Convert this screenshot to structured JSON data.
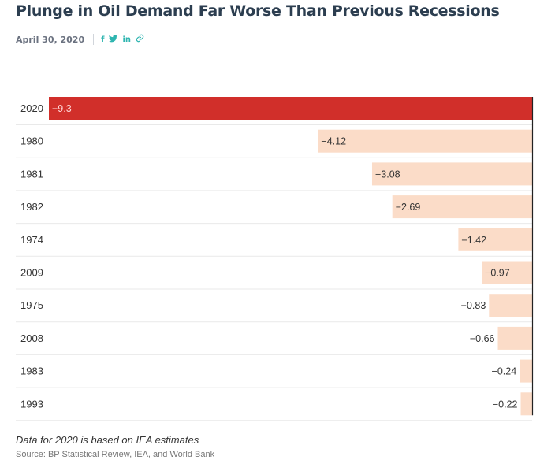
{
  "header": {
    "title": "Plunge in Oil Demand Far Worse Than Previous Recessions",
    "date": "April 30, 2020",
    "share": {
      "facebook": "f",
      "twitter": "t",
      "linkedin": "in",
      "link": "⛓"
    }
  },
  "chart_data": {
    "type": "bar",
    "orientation": "horizontal",
    "categories": [
      "2020",
      "1980",
      "1981",
      "1982",
      "1974",
      "2009",
      "1975",
      "2008",
      "1983",
      "1993"
    ],
    "values": [
      -9.3,
      -4.12,
      -3.08,
      -2.69,
      -1.42,
      -0.97,
      -0.83,
      -0.66,
      -0.24,
      -0.22
    ],
    "labels": [
      "−9.3",
      "−4.12",
      "−3.08",
      "−2.69",
      "−1.42",
      "−0.97",
      "−0.83",
      "−0.66",
      "−0.24",
      "−0.22"
    ],
    "highlight_category": "2020",
    "colors": {
      "highlight": "#d12f2a",
      "default": "#fbdcc8",
      "highlight_label": "#ffd5d5",
      "label": "#333333"
    },
    "xlim": [
      -9.3,
      0
    ],
    "title": "",
    "xlabel": "",
    "ylabel": ""
  },
  "footer": {
    "note": "Data for 2020 is based on IEA estimates",
    "source": "Source: BP Statistical Review, IEA, and World Bank"
  }
}
